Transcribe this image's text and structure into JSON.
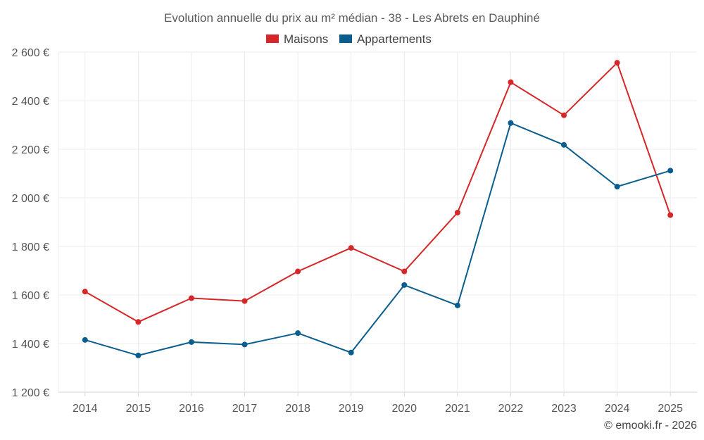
{
  "chart_data": {
    "type": "line",
    "title": "Evolution annuelle du prix au m² médian - 38 - Les Abrets en Dauphiné",
    "categories": [
      "2014",
      "2015",
      "2016",
      "2017",
      "2018",
      "2019",
      "2020",
      "2021",
      "2022",
      "2023",
      "2024",
      "2025"
    ],
    "series": [
      {
        "name": "Maisons",
        "color": "#d62728",
        "values": [
          1614,
          1489,
          1587,
          1575,
          1697,
          1794,
          1697,
          1939,
          2476,
          2340,
          2556,
          1929
        ]
      },
      {
        "name": "Appartements",
        "color": "#0a5e8f",
        "values": [
          1415,
          1351,
          1406,
          1396,
          1443,
          1363,
          1641,
          1557,
          2308,
          2218,
          2046,
          2112
        ]
      }
    ],
    "ylim": [
      1200,
      2600
    ],
    "yticks": [
      1200,
      1400,
      1600,
      1800,
      2000,
      2200,
      2400,
      2600
    ],
    "ytick_labels": [
      "1 200 €",
      "1 400 €",
      "1 600 €",
      "1 800 €",
      "2 000 €",
      "2 200 €",
      "2 400 €",
      "2 600 €"
    ],
    "xlabel": "",
    "ylabel": "",
    "legend_position": "top-center",
    "grid": true
  },
  "credit": "© emooki.fr - 2026"
}
